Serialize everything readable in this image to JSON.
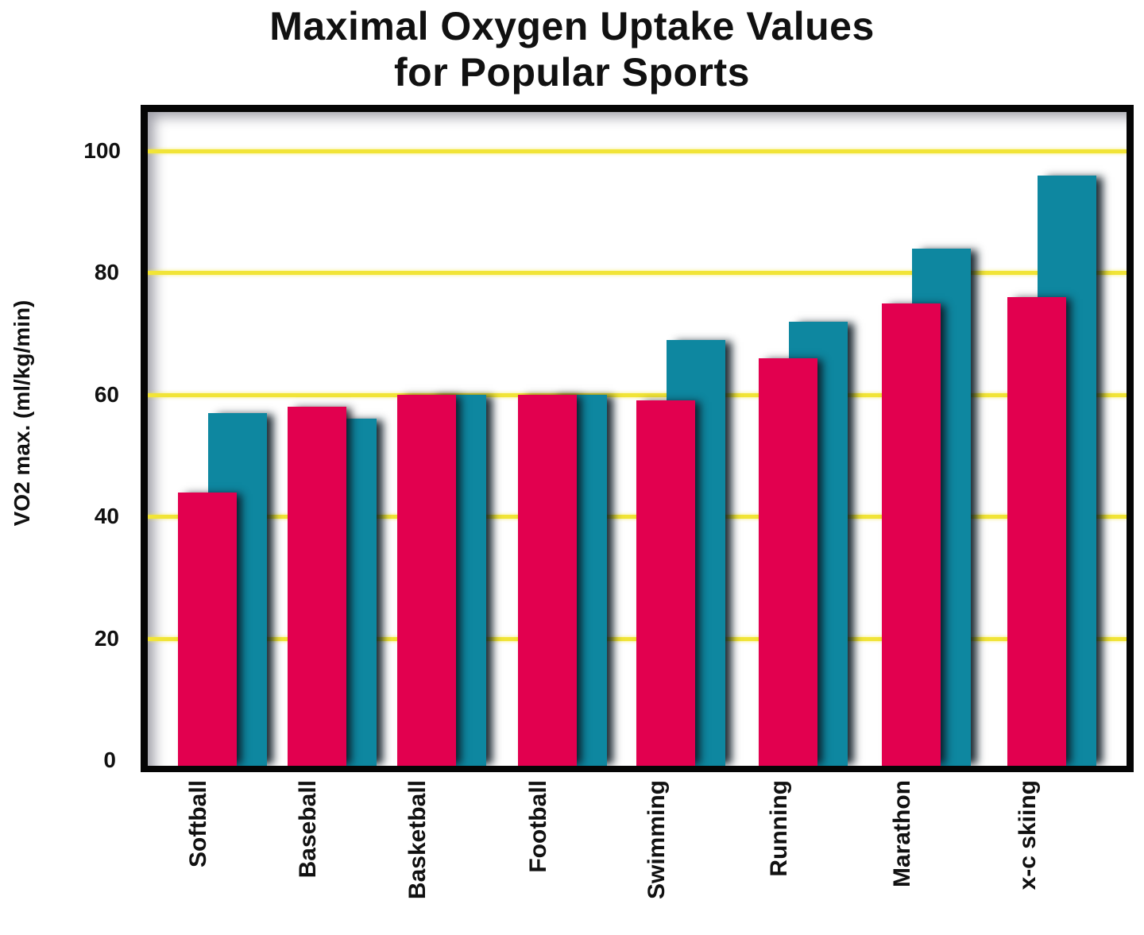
{
  "title": {
    "line1": "Maximal Oxygen Uptake Values",
    "line2": "for Popular Sports"
  },
  "yaxis": {
    "label": "VO2 max. (ml/kg/min)",
    "ticks": [
      "100",
      "80",
      "60",
      "40",
      "20",
      "0"
    ]
  },
  "colors": {
    "series_red": "#E2004F",
    "series_teal": "#0E87A0",
    "gridline": "#F1E437",
    "frame": "#050505"
  },
  "chart_data": {
    "type": "bar",
    "title": "Maximal Oxygen Uptake Values for Popular Sports",
    "xlabel": "",
    "ylabel": "VO2 max. (ml/kg/min)",
    "ylim": [
      0,
      100
    ],
    "yticks": [
      0,
      20,
      40,
      60,
      80,
      100
    ],
    "grid": true,
    "legend": null,
    "categories": [
      "Softball",
      "Baseball",
      "Basketball",
      "Football",
      "Swimming",
      "Running",
      "Marathon",
      "x-c skiing"
    ],
    "series": [
      {
        "name": "red series",
        "color": "#E2004F",
        "values": [
          44,
          58,
          60,
          60,
          59,
          66,
          75,
          76
        ]
      },
      {
        "name": "teal series",
        "color": "#0E87A0",
        "values": [
          57,
          56,
          60,
          60,
          69,
          72,
          84,
          96
        ]
      }
    ]
  }
}
